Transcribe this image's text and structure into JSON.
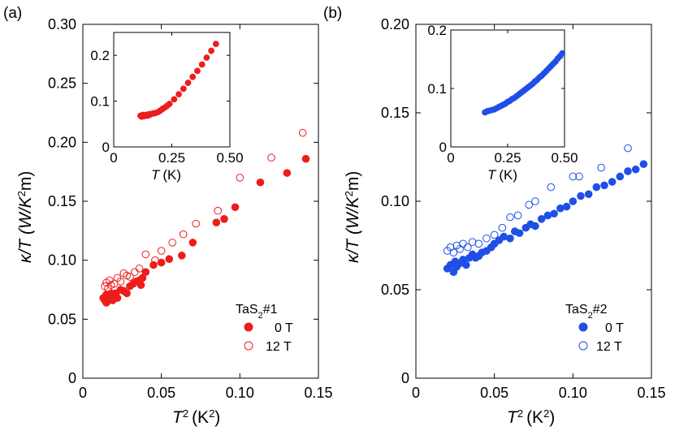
{
  "chart_data": [
    {
      "panel": "(a)",
      "type": "scatter",
      "xlabel": "T",
      "xlabel_sup": "2",
      "xlabel_unit": "(K",
      "xlabel_unit_sup": "2",
      "xlabel_close": ")",
      "ylabel": "κ/T (W/K",
      "ylabel_sup": "2",
      "ylabel_end": "m)",
      "xlim": [
        0,
        0.15
      ],
      "ylim": [
        0,
        0.3
      ],
      "xticks": [
        "0",
        "0.05",
        "0.10",
        "0.15"
      ],
      "yticks": [
        "0",
        "0.05",
        "0.10",
        "0.15",
        "0.20",
        "0.25",
        "0.30"
      ],
      "colors": {
        "series": "#ee1c1c"
      },
      "legend": {
        "sample": "TaS",
        "sample_sub": "2",
        "sample_suffix": "#1",
        "placement": "bottom-right"
      },
      "series": [
        {
          "name": "0 T",
          "marker": "filled",
          "x": [
            0.013,
            0.014,
            0.015,
            0.015,
            0.016,
            0.017,
            0.018,
            0.019,
            0.02,
            0.021,
            0.022,
            0.024,
            0.026,
            0.028,
            0.03,
            0.032,
            0.034,
            0.036,
            0.037,
            0.038,
            0.04,
            0.045,
            0.05,
            0.055,
            0.063,
            0.07,
            0.085,
            0.09,
            0.097,
            0.113,
            0.13,
            0.142
          ],
          "y": [
            0.068,
            0.066,
            0.071,
            0.064,
            0.069,
            0.067,
            0.072,
            0.066,
            0.07,
            0.072,
            0.068,
            0.075,
            0.074,
            0.072,
            0.078,
            0.08,
            0.082,
            0.083,
            0.079,
            0.085,
            0.09,
            0.096,
            0.098,
            0.101,
            0.104,
            0.115,
            0.132,
            0.135,
            0.145,
            0.166,
            0.174,
            0.186
          ]
        },
        {
          "name": "12 T",
          "marker": "open",
          "x": [
            0.014,
            0.015,
            0.016,
            0.017,
            0.018,
            0.02,
            0.022,
            0.024,
            0.026,
            0.028,
            0.03,
            0.033,
            0.036,
            0.04,
            0.046,
            0.05,
            0.057,
            0.064,
            0.072,
            0.086,
            0.1,
            0.12,
            0.14
          ],
          "y": [
            0.078,
            0.081,
            0.076,
            0.083,
            0.079,
            0.08,
            0.085,
            0.082,
            0.089,
            0.087,
            0.086,
            0.09,
            0.093,
            0.105,
            0.1,
            0.108,
            0.115,
            0.122,
            0.131,
            0.142,
            0.17,
            0.187,
            0.208
          ]
        }
      ],
      "inset": {
        "type": "scatter",
        "xlabel": "T",
        "xlabel_unit": "(K)",
        "xlim": [
          0,
          0.5
        ],
        "ylim": [
          0,
          0.25
        ],
        "xticks": [
          "0",
          "0.25",
          "0.50"
        ],
        "yticks": [
          "0",
          "0.1",
          "0.2"
        ],
        "series": [
          {
            "name": "0 T",
            "marker": "filled",
            "x": [
              0.115,
              0.12,
              0.125,
              0.13,
              0.135,
              0.14,
              0.145,
              0.15,
              0.155,
              0.16,
              0.17,
              0.18,
              0.19,
              0.2,
              0.21,
              0.22,
              0.23,
              0.24,
              0.26,
              0.28,
              0.3,
              0.32,
              0.34,
              0.36,
              0.38,
              0.4,
              0.42,
              0.44
            ],
            "y": [
              0.068,
              0.066,
              0.07,
              0.067,
              0.069,
              0.07,
              0.068,
              0.071,
              0.07,
              0.072,
              0.073,
              0.074,
              0.076,
              0.079,
              0.083,
              0.086,
              0.09,
              0.094,
              0.104,
              0.115,
              0.127,
              0.14,
              0.153,
              0.166,
              0.18,
              0.195,
              0.21,
              0.225
            ]
          }
        ]
      }
    },
    {
      "panel": "(b)",
      "type": "scatter",
      "xlabel": "T",
      "xlabel_sup": "2",
      "xlabel_unit": "(K",
      "xlabel_unit_sup": "2",
      "xlabel_close": ")",
      "ylabel": "κ/T (W/K",
      "ylabel_sup": "2",
      "ylabel_end": "m)",
      "xlim": [
        0,
        0.15
      ],
      "ylim": [
        0,
        0.2
      ],
      "xticks": [
        "0",
        "0.05",
        "0.10",
        "0.15"
      ],
      "yticks": [
        "0",
        "0.05",
        "0.10",
        "0.15",
        "0.20"
      ],
      "colors": {
        "series": "#1f4fe6"
      },
      "legend": {
        "sample": "TaS",
        "sample_sub": "2",
        "sample_suffix": "#2",
        "placement": "bottom-right"
      },
      "series": [
        {
          "name": "0 T",
          "marker": "filled",
          "x": [
            0.02,
            0.022,
            0.024,
            0.025,
            0.026,
            0.028,
            0.03,
            0.032,
            0.034,
            0.036,
            0.038,
            0.04,
            0.042,
            0.045,
            0.048,
            0.05,
            0.053,
            0.056,
            0.06,
            0.063,
            0.066,
            0.07,
            0.073,
            0.076,
            0.08,
            0.084,
            0.088,
            0.092,
            0.096,
            0.1,
            0.105,
            0.11,
            0.115,
            0.12,
            0.125,
            0.13,
            0.135,
            0.14,
            0.145
          ],
          "y": [
            0.062,
            0.064,
            0.06,
            0.066,
            0.063,
            0.065,
            0.067,
            0.064,
            0.068,
            0.07,
            0.068,
            0.069,
            0.071,
            0.072,
            0.074,
            0.076,
            0.078,
            0.08,
            0.079,
            0.083,
            0.082,
            0.085,
            0.087,
            0.086,
            0.09,
            0.092,
            0.093,
            0.096,
            0.097,
            0.1,
            0.103,
            0.104,
            0.108,
            0.109,
            0.111,
            0.114,
            0.117,
            0.118,
            0.121
          ]
        },
        {
          "name": "12 T",
          "marker": "open",
          "x": [
            0.02,
            0.022,
            0.024,
            0.026,
            0.028,
            0.03,
            0.033,
            0.036,
            0.04,
            0.045,
            0.05,
            0.055,
            0.06,
            0.065,
            0.072,
            0.076,
            0.086,
            0.1,
            0.104,
            0.118,
            0.135
          ],
          "y": [
            0.072,
            0.074,
            0.071,
            0.075,
            0.073,
            0.076,
            0.074,
            0.077,
            0.076,
            0.079,
            0.081,
            0.085,
            0.091,
            0.092,
            0.098,
            0.1,
            0.108,
            0.114,
            0.114,
            0.119,
            0.13
          ]
        }
      ],
      "inset": {
        "type": "scatter",
        "xlabel": "T",
        "xlabel_unit": "(K)",
        "xlim": [
          0,
          0.5
        ],
        "ylim": [
          0,
          0.2
        ],
        "xticks": [
          "0",
          "0.25",
          "0.50"
        ],
        "yticks": [
          "0",
          "0.1",
          "0.2"
        ],
        "series": [
          {
            "name": "0 T",
            "marker": "filled",
            "x": [
              0.15,
              0.16,
              0.17,
              0.18,
              0.19,
              0.2,
              0.21,
              0.22,
              0.23,
              0.24,
              0.25,
              0.26,
              0.27,
              0.28,
              0.29,
              0.3,
              0.31,
              0.32,
              0.33,
              0.34,
              0.35,
              0.36,
              0.37,
              0.38,
              0.39,
              0.4,
              0.41,
              0.42,
              0.43,
              0.44,
              0.45,
              0.46,
              0.47,
              0.48,
              0.49
            ],
            "y": [
              0.059,
              0.061,
              0.062,
              0.063,
              0.064,
              0.066,
              0.068,
              0.07,
              0.072,
              0.074,
              0.077,
              0.079,
              0.082,
              0.084,
              0.087,
              0.09,
              0.093,
              0.096,
              0.099,
              0.102,
              0.105,
              0.108,
              0.112,
              0.115,
              0.119,
              0.122,
              0.126,
              0.13,
              0.134,
              0.138,
              0.142,
              0.146,
              0.151,
              0.155,
              0.16
            ]
          }
        ]
      }
    }
  ]
}
